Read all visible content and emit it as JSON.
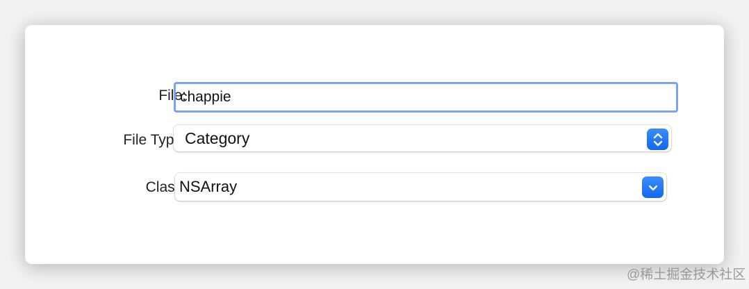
{
  "form": {
    "file_label": "File:",
    "file_value": "chappie",
    "file_type_label": "File Type:",
    "file_type_value": "Category",
    "class_label": "Class:",
    "class_value": "NSArray"
  },
  "watermark": "@稀土掘金技术社区",
  "accent": "#1a6ff0"
}
